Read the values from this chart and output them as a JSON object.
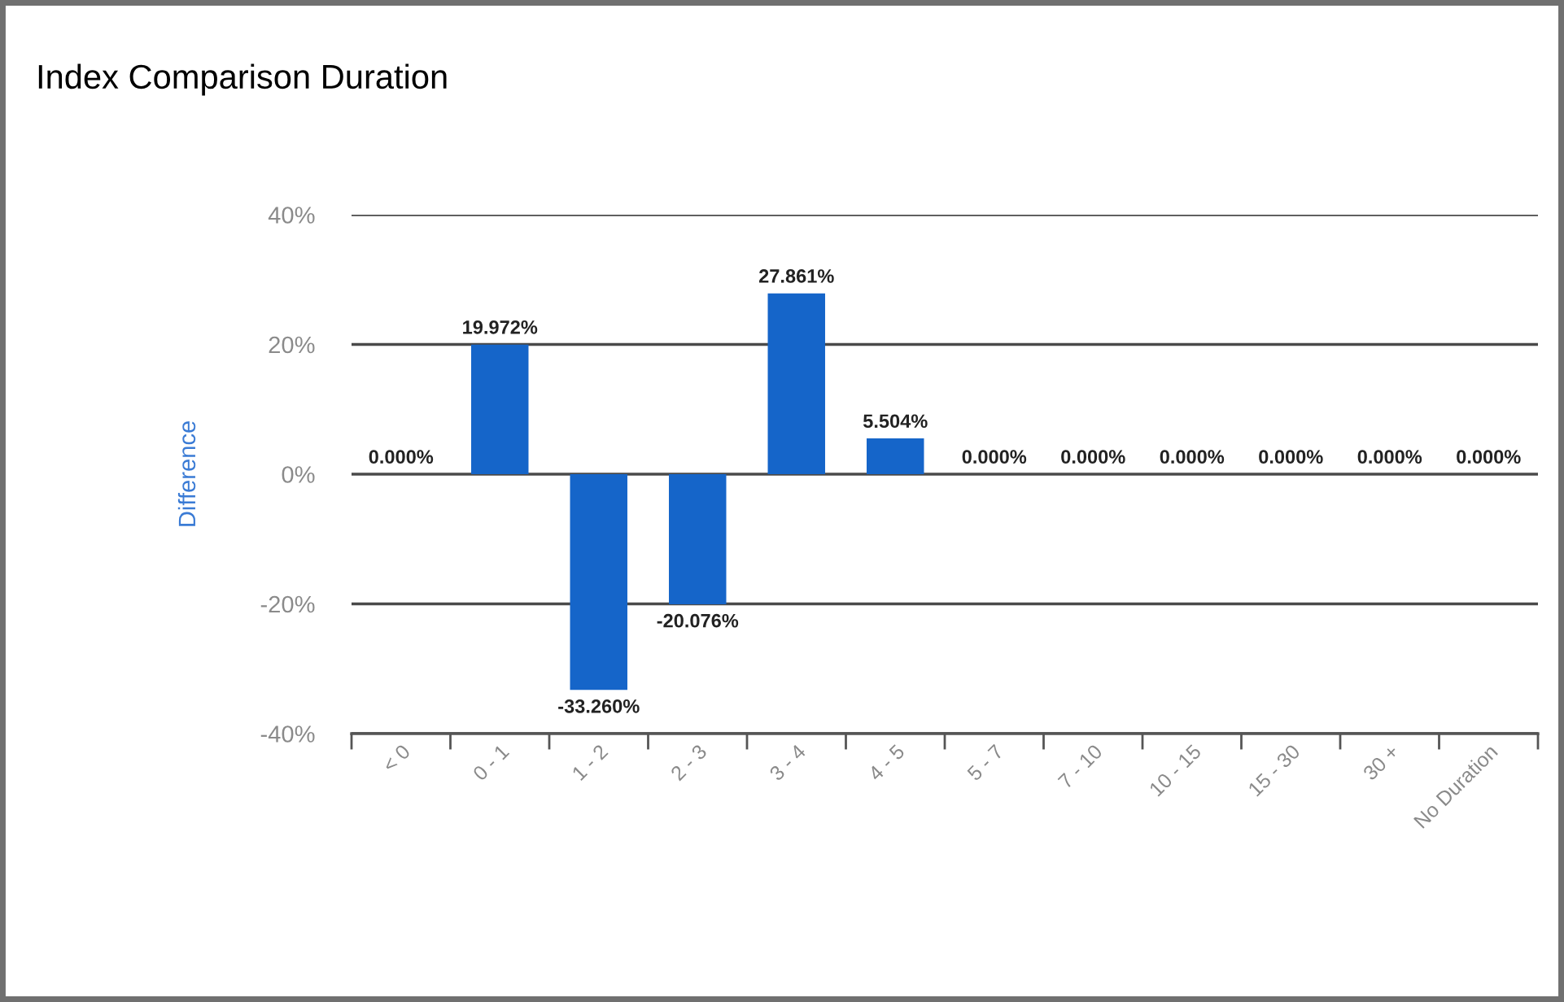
{
  "chart_data": {
    "type": "bar",
    "title": "Index Comparison Duration",
    "ylabel": "Difference",
    "categories": [
      "< 0",
      "0 - 1",
      "1 - 2",
      "2 - 3",
      "3 - 4",
      "4 - 5",
      "5 - 7",
      "7 - 10",
      "10 - 15",
      "15 - 30",
      "30 +",
      "No Duration"
    ],
    "values": [
      0,
      19.972,
      -33.26,
      -20.076,
      27.861,
      5.504,
      0,
      0,
      0,
      0,
      0,
      0
    ],
    "value_labels": [
      "0.000%",
      "19.972%",
      "-33.260%",
      "-20.076%",
      "27.861%",
      "5.504%",
      "0.000%",
      "0.000%",
      "0.000%",
      "0.000%",
      "0.000%",
      "0.000%"
    ],
    "color": "#1565c9",
    "ylim": [
      -40,
      40
    ],
    "yticks": [
      {
        "value": -40,
        "label": "-40%"
      },
      {
        "value": -20,
        "label": "-20%"
      },
      {
        "value": 0,
        "label": "0%"
      },
      {
        "value": 20,
        "label": "20%"
      },
      {
        "value": 40,
        "label": "40%"
      }
    ],
    "grid": "y"
  }
}
